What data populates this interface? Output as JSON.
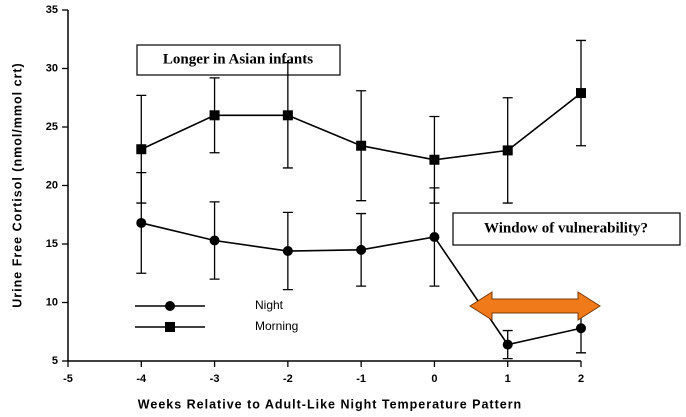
{
  "chart_data": {
    "type": "errorbar-line",
    "x_label": "Weeks Relative to Adult-Like Night Temperature Pattern",
    "y_label": "Urine Free Cortisol (nmol/mmol crt)",
    "annotations": [
      "Longer in Asian infants",
      "Window of vulnerability?"
    ],
    "x": [
      -4,
      -3,
      -2,
      -1,
      0,
      1,
      2
    ],
    "series": [
      {
        "name": "Night",
        "color": "#000000",
        "marker": "circle",
        "values": [
          16.8,
          15.3,
          14.4,
          14.5,
          15.6,
          6.4,
          7.8
        ],
        "errors": [
          4.3,
          3.3,
          3.3,
          3.1,
          4.2,
          1.2,
          2.1
        ]
      },
      {
        "name": "Morning",
        "color": "#000000",
        "marker": "square",
        "values": [
          23.1,
          26.0,
          26.0,
          23.4,
          22.2,
          23.0,
          27.9
        ],
        "errors": [
          4.6,
          3.2,
          4.5,
          4.7,
          3.7,
          4.5,
          4.5
        ]
      }
    ],
    "xlim": [
      -5,
      2
    ],
    "xticks": [
      -5,
      -4,
      -3,
      -2,
      -1,
      0,
      1,
      2
    ],
    "ylim": [
      5,
      35
    ],
    "yticks": [
      5,
      10,
      15,
      20,
      25,
      30,
      35
    ],
    "arrow_color": "#f07a1a"
  }
}
